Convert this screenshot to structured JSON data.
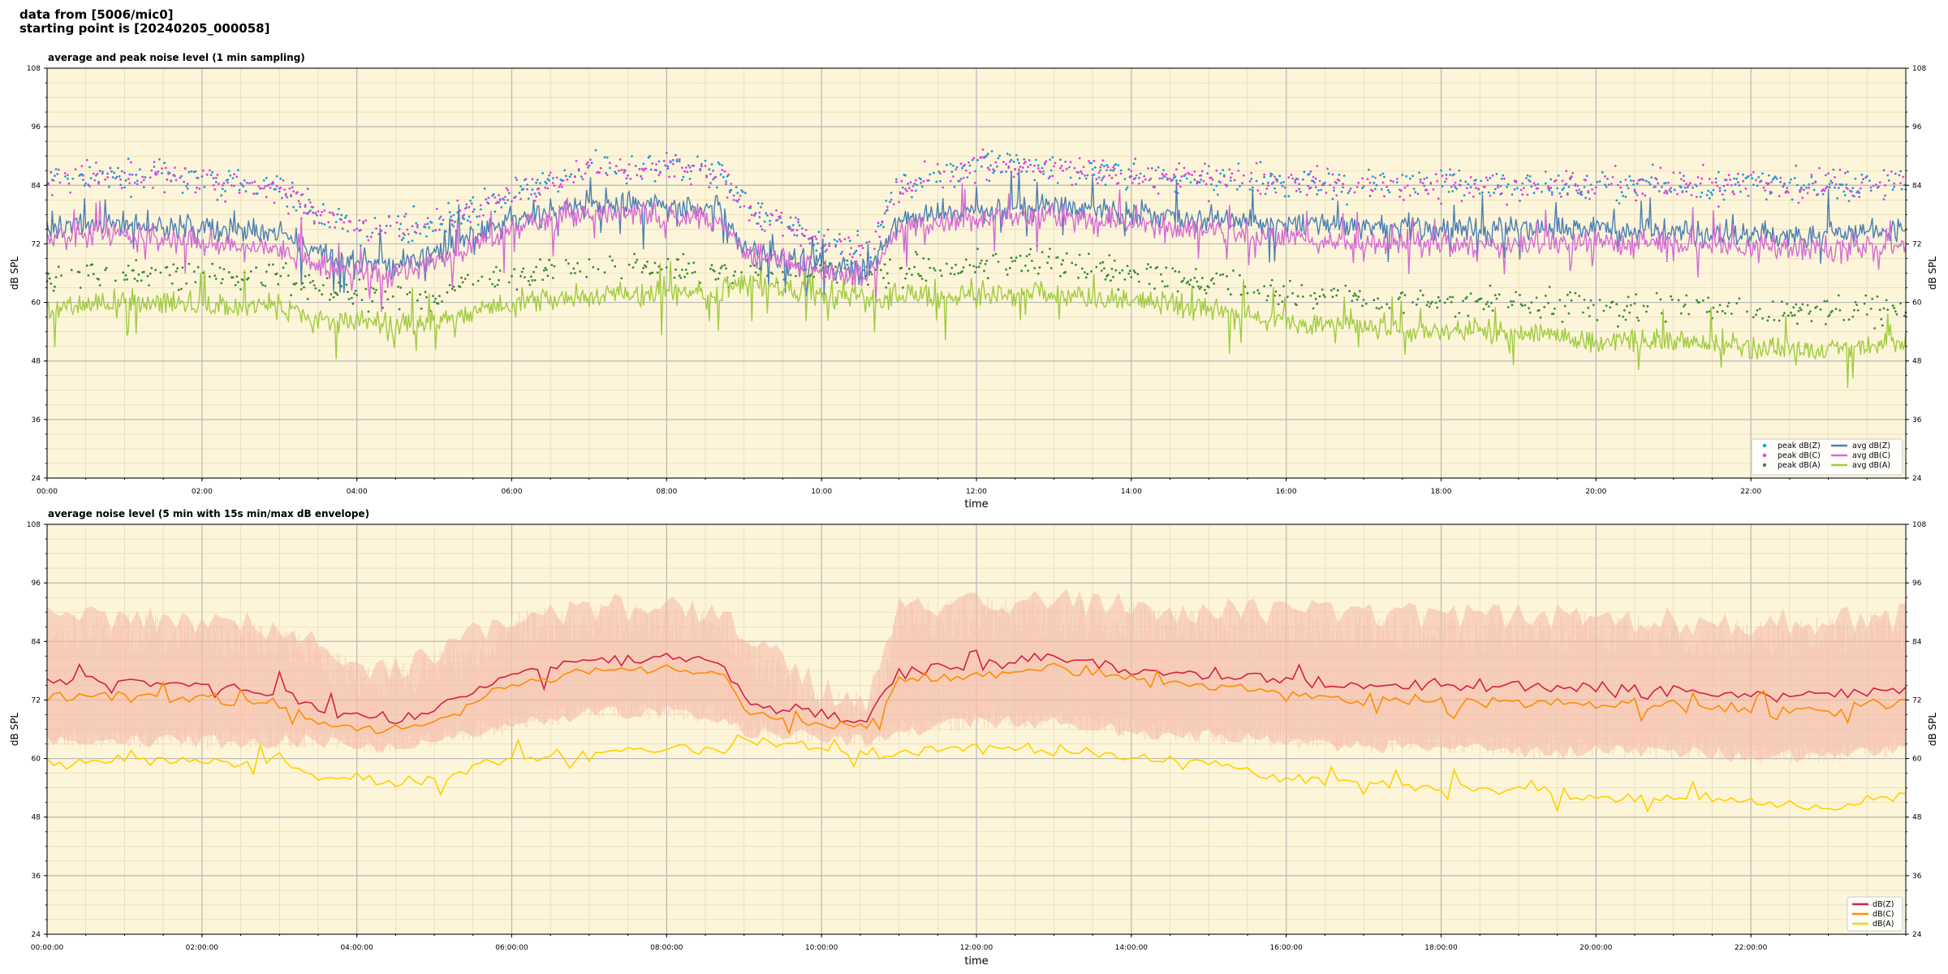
{
  "header": {
    "line1": "data from [5006/mic0]",
    "line2": "starting point is [20240205_000058]"
  },
  "chart_data": [
    {
      "type": "line",
      "title": "average and peak noise level (1 min sampling)",
      "xlabel": "time",
      "ylabel": "dB SPL",
      "ylim": [
        24,
        108
      ],
      "xlim_hours": [
        0,
        24
      ],
      "yticks": [
        24,
        36,
        48,
        60,
        72,
        84,
        96,
        108
      ],
      "xticks": [
        "00:00",
        "02:00",
        "04:00",
        "06:00",
        "08:00",
        "10:00",
        "12:00",
        "14:00",
        "16:00",
        "18:00",
        "20:00",
        "22:00"
      ],
      "grid": true,
      "legend_position": "bottom-right",
      "background": "#fdf5d9",
      "series": [
        {
          "name": "peak dB(Z)",
          "kind": "scatter",
          "color": "#1f9bd6",
          "x": [
            0,
            1,
            2,
            3,
            3.5,
            4,
            4.5,
            5,
            6,
            7,
            8,
            8.7,
            9,
            10,
            10.6,
            11,
            12,
            13,
            14,
            15,
            16,
            17,
            18,
            19,
            20,
            21,
            22,
            23,
            24
          ],
          "y": [
            85,
            86,
            85,
            83,
            78,
            75,
            75,
            76,
            82,
            87,
            88,
            86,
            80,
            72,
            71,
            84,
            88,
            88,
            86,
            85,
            85,
            84,
            84,
            84,
            84,
            84,
            84,
            84,
            84
          ]
        },
        {
          "name": "peak dB(C)",
          "kind": "scatter",
          "color": "#e040e0",
          "x": [
            0,
            1,
            2,
            3,
            3.5,
            4,
            4.5,
            5,
            6,
            7,
            8,
            8.7,
            9,
            10,
            10.6,
            11,
            12,
            13,
            14,
            15,
            16,
            17,
            18,
            19,
            20,
            21,
            22,
            23,
            24
          ],
          "y": [
            85,
            86,
            85,
            83,
            78,
            75,
            75,
            76,
            82,
            87,
            88,
            86,
            80,
            72,
            71,
            84,
            88,
            88,
            86,
            85,
            85,
            84,
            84,
            84,
            84,
            84,
            84,
            84,
            84
          ]
        },
        {
          "name": "peak dB(A)",
          "kind": "scatter",
          "color": "#3a8a3a",
          "x": [
            0,
            1,
            2,
            3,
            3.5,
            4,
            4.5,
            5,
            6,
            7,
            8,
            8.7,
            9,
            10,
            10.6,
            11,
            12,
            13,
            14,
            15,
            16,
            17,
            18,
            19,
            20,
            21,
            22,
            23,
            24
          ],
          "y": [
            65,
            66,
            65,
            65,
            63,
            62,
            61,
            61,
            66,
            67,
            67,
            67,
            66,
            67,
            66,
            67,
            68,
            68,
            66,
            64,
            62,
            61,
            60,
            60,
            59,
            59,
            58,
            58,
            59
          ]
        },
        {
          "name": "avg dB(Z)",
          "kind": "line",
          "color": "#4a7fb5",
          "x": [
            0,
            1,
            2,
            3,
            3.5,
            4,
            4.5,
            5,
            6,
            7,
            8,
            8.7,
            9,
            10,
            10.6,
            11,
            12,
            13,
            14,
            15,
            16,
            17,
            18,
            19,
            20,
            21,
            22,
            23,
            24
          ],
          "y": [
            76,
            76,
            75,
            74,
            70,
            68,
            68,
            70,
            77,
            80,
            80,
            79,
            71,
            68,
            66,
            77,
            79,
            80,
            78,
            77,
            76,
            76,
            75,
            75,
            75,
            75,
            74,
            74,
            75
          ]
        },
        {
          "name": "avg dB(C)",
          "kind": "line",
          "color": "#d66ad6",
          "x": [
            0,
            1,
            2,
            3,
            3.5,
            4,
            4.5,
            5,
            6,
            7,
            8,
            8.7,
            9,
            10,
            10.6,
            11,
            12,
            13,
            14,
            15,
            16,
            17,
            18,
            19,
            20,
            21,
            22,
            23,
            24
          ],
          "y": [
            73,
            74,
            72,
            71,
            68,
            66,
            66,
            68,
            75,
            78,
            78,
            77,
            70,
            67,
            65,
            75,
            77,
            78,
            76,
            75,
            73,
            72,
            72,
            72,
            72,
            72,
            71,
            71,
            72
          ]
        },
        {
          "name": "avg dB(A)",
          "kind": "line",
          "color": "#a0cc40",
          "x": [
            0,
            1,
            2,
            3,
            3.5,
            4,
            4.5,
            5,
            6,
            7,
            8,
            8.7,
            9,
            10,
            10.6,
            11,
            12,
            13,
            14,
            15,
            16,
            17,
            18,
            19,
            20,
            21,
            22,
            23,
            24
          ],
          "y": [
            59,
            60,
            59,
            60,
            56,
            56,
            55,
            56,
            60,
            61,
            62,
            62,
            64,
            62,
            61,
            61,
            62,
            62,
            60,
            59,
            56,
            55,
            54,
            54,
            52,
            52,
            51,
            50,
            53
          ]
        }
      ]
    },
    {
      "type": "line",
      "title": "average noise level (5 min with 15s min/max dB envelope)",
      "xlabel": "time",
      "ylabel": "dB SPL",
      "ylim": [
        24,
        108
      ],
      "xlim_hours": [
        0,
        24
      ],
      "yticks": [
        24,
        36,
        48,
        60,
        72,
        84,
        96,
        108
      ],
      "xticks": [
        "00:00:00",
        "02:00:00",
        "04:00:00",
        "06:00:00",
        "08:00:00",
        "10:00:00",
        "12:00:00",
        "14:00:00",
        "16:00:00",
        "18:00:00",
        "20:00:00",
        "22:00:00"
      ],
      "grid": true,
      "legend_position": "bottom-right",
      "background": "#fdf5d9",
      "envelope": {
        "color": "#f4b8a8",
        "x": [
          0,
          1,
          2,
          3,
          3.5,
          4,
          4.5,
          5,
          6,
          7,
          8,
          8.7,
          9,
          10,
          10.6,
          11,
          12,
          13,
          14,
          15,
          16,
          17,
          18,
          19,
          20,
          21,
          22,
          23,
          24
        ],
        "min": [
          62,
          62,
          62,
          62,
          62,
          61,
          61,
          62,
          65,
          68,
          68,
          67,
          64,
          63,
          62,
          64,
          66,
          66,
          64,
          63,
          62,
          61,
          61,
          60,
          60,
          60,
          59,
          59,
          60
        ],
        "max": [
          90,
          90,
          89,
          88,
          84,
          80,
          80,
          82,
          90,
          92,
          92,
          91,
          86,
          75,
          73,
          92,
          93,
          93,
          92,
          91,
          91,
          90,
          90,
          90,
          90,
          89,
          89,
          89,
          90
        ]
      },
      "series": [
        {
          "name": "dB(Z)",
          "color": "#d62040",
          "x": [
            0,
            1,
            2,
            3,
            3.5,
            4,
            4.5,
            5,
            6,
            7,
            8,
            8.7,
            9,
            10,
            10.6,
            11,
            12,
            13,
            14,
            15,
            16,
            17,
            18,
            19,
            20,
            21,
            22,
            23,
            24
          ],
          "y": [
            76,
            76,
            75,
            74,
            70,
            69,
            68,
            70,
            77,
            80,
            81,
            80,
            72,
            69,
            68,
            78,
            79,
            81,
            78,
            77,
            76,
            75,
            75,
            75,
            74,
            74,
            73,
            73,
            75
          ]
        },
        {
          "name": "dB(C)",
          "color": "#ff8c00",
          "x": [
            0,
            1,
            2,
            3,
            3.5,
            4,
            4.5,
            5,
            6,
            7,
            8,
            8.7,
            9,
            10,
            10.6,
            11,
            12,
            13,
            14,
            15,
            16,
            17,
            18,
            19,
            20,
            21,
            22,
            23,
            24
          ],
          "y": [
            73,
            73,
            72,
            71,
            68,
            66,
            66,
            68,
            75,
            78,
            78,
            77,
            70,
            67,
            66,
            76,
            77,
            79,
            76,
            75,
            73,
            72,
            72,
            72,
            71,
            71,
            70,
            70,
            72
          ]
        },
        {
          "name": "dB(A)",
          "color": "#ffd000",
          "x": [
            0,
            1,
            2,
            3,
            3.5,
            4,
            4.5,
            5,
            6,
            7,
            8,
            8.7,
            9,
            10,
            10.6,
            11,
            12,
            13,
            14,
            15,
            16,
            17,
            18,
            19,
            20,
            21,
            22,
            23,
            24
          ],
          "y": [
            59,
            60,
            59,
            60,
            56,
            56,
            55,
            56,
            60,
            61,
            62,
            62,
            64,
            62,
            61,
            61,
            62,
            62,
            60,
            59,
            56,
            55,
            54,
            54,
            52,
            52,
            51,
            50,
            53
          ]
        }
      ]
    }
  ]
}
